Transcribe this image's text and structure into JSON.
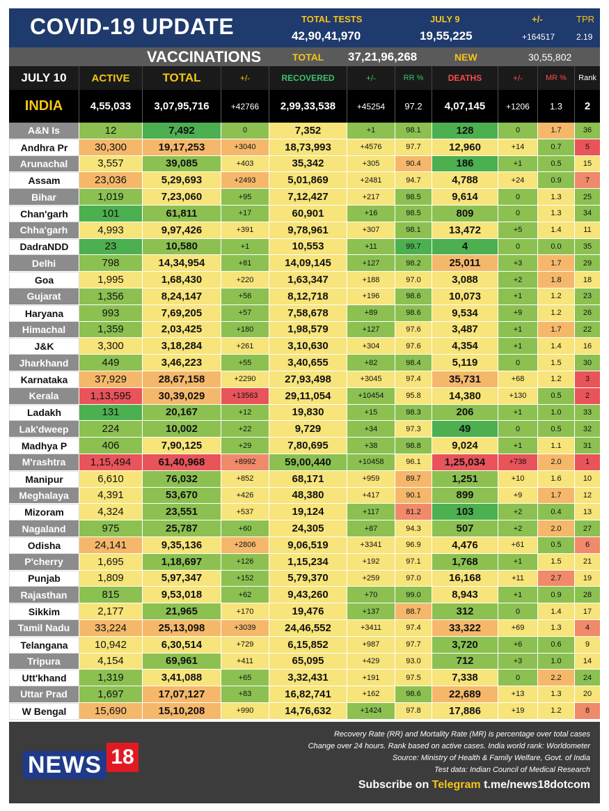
{
  "banner": {
    "title": "COVID-19 UPDATE",
    "total_tests_label": "TOTAL TESTS",
    "total_tests_value": "42,90,41,970",
    "july9_label": "JULY 9",
    "july9_value": "19,55,225",
    "pm_label": "+/-",
    "pm_value": "+164517",
    "tpr_label": "TPR",
    "tpr_value": "2.19"
  },
  "vaccinations": {
    "title": "VACCINATIONS",
    "total_label": "TOTAL",
    "total_value": "37,21,96,268",
    "new_label": "NEW",
    "new_value": "30,55,802"
  },
  "header": {
    "date": "JULY 10",
    "active": "ACTIVE",
    "total": "TOTAL",
    "pm1": "+/-",
    "recovered": "RECOVERED",
    "pm2": "+/-",
    "rr": "RR %",
    "deaths": "DEATHS",
    "pm3": "+/-",
    "mr": "MR %",
    "rank": "Rank"
  },
  "colors": {
    "dark_green": "#4caf50",
    "green": "#8cc152",
    "light_green": "#c2d96a",
    "yellow": "#f7e47a",
    "orange": "#f5b86b",
    "salmon": "#f08a6a",
    "red": "#e8545a"
  },
  "india": [
    "INDIA",
    "4,55,033",
    "3,07,95,716",
    "+42766",
    "2,99,33,538",
    "+45254",
    "97.2",
    "4,07,145",
    "+1206",
    "1.3",
    "2"
  ],
  "rows": [
    {
      "c": [
        "A&N Is",
        "12",
        "7,492",
        "0",
        "7,352",
        "+1",
        "98.1",
        "128",
        "0",
        "1.7",
        "36"
      ],
      "bg": [
        "g",
        "dg",
        "g",
        "y",
        "g",
        "g",
        "dg",
        "g",
        "o",
        "g"
      ]
    },
    {
      "c": [
        "Andhra Pr",
        "30,300",
        "19,17,253",
        "+3040",
        "18,73,993",
        "+4576",
        "97.7",
        "12,960",
        "+14",
        "0.7",
        "5"
      ],
      "bg": [
        "o",
        "o",
        "o",
        "y",
        "y",
        "y",
        "y",
        "y",
        "g",
        "r"
      ]
    },
    {
      "c": [
        "Arunachal",
        "3,557",
        "39,085",
        "+403",
        "35,342",
        "+305",
        "90.4",
        "186",
        "+1",
        "0.5",
        "15"
      ],
      "bg": [
        "y",
        "g",
        "y",
        "y",
        "y",
        "o",
        "dg",
        "g",
        "g",
        "y"
      ]
    },
    {
      "c": [
        "Assam",
        "23,036",
        "5,29,693",
        "+2493",
        "5,01,869",
        "+2481",
        "94.7",
        "4,788",
        "+24",
        "0.9",
        "7"
      ],
      "bg": [
        "o",
        "y",
        "o",
        "y",
        "y",
        "y",
        "y",
        "y",
        "g",
        "s"
      ]
    },
    {
      "c": [
        "Bihar",
        "1,019",
        "7,23,060",
        "+95",
        "7,12,427",
        "+217",
        "98.5",
        "9,614",
        "0",
        "1.3",
        "25"
      ],
      "bg": [
        "g",
        "y",
        "g",
        "y",
        "y",
        "g",
        "y",
        "g",
        "y",
        "g"
      ]
    },
    {
      "c": [
        "Chan'garh",
        "101",
        "61,811",
        "+17",
        "60,901",
        "+16",
        "98.5",
        "809",
        "0",
        "1.3",
        "34"
      ],
      "bg": [
        "dg",
        "g",
        "g",
        "y",
        "g",
        "g",
        "g",
        "g",
        "y",
        "g"
      ]
    },
    {
      "c": [
        "Chha'garh",
        "4,993",
        "9,97,426",
        "+391",
        "9,78,961",
        "+307",
        "98.1",
        "13,472",
        "+5",
        "1.4",
        "11"
      ],
      "bg": [
        "y",
        "y",
        "y",
        "y",
        "y",
        "g",
        "y",
        "g",
        "y",
        "y"
      ]
    },
    {
      "c": [
        "DadraNDD",
        "23",
        "10,580",
        "+1",
        "10,553",
        "+11",
        "99.7",
        "4",
        "0",
        "0.0",
        "35"
      ],
      "bg": [
        "dg",
        "g",
        "g",
        "y",
        "g",
        "dg",
        "dg",
        "g",
        "g",
        "g"
      ]
    },
    {
      "c": [
        "Delhi",
        "798",
        "14,34,954",
        "+81",
        "14,09,145",
        "+127",
        "98.2",
        "25,011",
        "+3",
        "1.7",
        "29"
      ],
      "bg": [
        "g",
        "y",
        "g",
        "y",
        "g",
        "g",
        "o",
        "g",
        "o",
        "g"
      ]
    },
    {
      "c": [
        "Goa",
        "1,995",
        "1,68,430",
        "+220",
        "1,63,347",
        "+188",
        "97.0",
        "3,088",
        "+2",
        "1.8",
        "18"
      ],
      "bg": [
        "y",
        "y",
        "y",
        "y",
        "y",
        "y",
        "y",
        "g",
        "o",
        "y"
      ]
    },
    {
      "c": [
        "Gujarat",
        "1,356",
        "8,24,147",
        "+56",
        "8,12,718",
        "+196",
        "98.6",
        "10,073",
        "+1",
        "1.2",
        "23"
      ],
      "bg": [
        "g",
        "y",
        "g",
        "y",
        "y",
        "g",
        "y",
        "g",
        "y",
        "g"
      ]
    },
    {
      "c": [
        "Haryana",
        "993",
        "7,69,205",
        "+57",
        "7,58,678",
        "+89",
        "98.6",
        "9,534",
        "+9",
        "1.2",
        "26"
      ],
      "bg": [
        "g",
        "y",
        "g",
        "y",
        "g",
        "g",
        "y",
        "g",
        "y",
        "g"
      ]
    },
    {
      "c": [
        "Himachal",
        "1,359",
        "2,03,425",
        "+180",
        "1,98,579",
        "+127",
        "97.6",
        "3,487",
        "+1",
        "1.7",
        "22"
      ],
      "bg": [
        "g",
        "y",
        "g",
        "y",
        "g",
        "y",
        "y",
        "g",
        "o",
        "g"
      ]
    },
    {
      "c": [
        "J&K",
        "3,300",
        "3,18,284",
        "+261",
        "3,10,630",
        "+304",
        "97.6",
        "4,354",
        "+1",
        "1.4",
        "16"
      ],
      "bg": [
        "y",
        "y",
        "y",
        "y",
        "y",
        "y",
        "y",
        "g",
        "y",
        "y"
      ]
    },
    {
      "c": [
        "Jharkhand",
        "449",
        "3,46,223",
        "+55",
        "3,40,655",
        "+82",
        "98.4",
        "5,119",
        "0",
        "1.5",
        "30"
      ],
      "bg": [
        "g",
        "y",
        "g",
        "y",
        "g",
        "g",
        "y",
        "g",
        "y",
        "g"
      ]
    },
    {
      "c": [
        "Karnataka",
        "37,929",
        "28,67,158",
        "+2290",
        "27,93,498",
        "+3045",
        "97.4",
        "35,731",
        "+68",
        "1.2",
        "3"
      ],
      "bg": [
        "o",
        "o",
        "y",
        "y",
        "y",
        "y",
        "o",
        "y",
        "y",
        "r"
      ]
    },
    {
      "c": [
        "Kerala",
        "1,13,595",
        "30,39,029",
        "+13563",
        "29,11,054",
        "+10454",
        "95.8",
        "14,380",
        "+130",
        "0.5",
        "2"
      ],
      "bg": [
        "r",
        "o",
        "r",
        "y",
        "g",
        "y",
        "y",
        "y",
        "g",
        "r"
      ]
    },
    {
      "c": [
        "Ladakh",
        "131",
        "20,167",
        "+12",
        "19,830",
        "+15",
        "98.3",
        "206",
        "+1",
        "1.0",
        "33"
      ],
      "bg": [
        "dg",
        "g",
        "g",
        "y",
        "g",
        "g",
        "g",
        "g",
        "g",
        "g"
      ]
    },
    {
      "c": [
        "Lak'dweep",
        "224",
        "10,002",
        "+22",
        "9,729",
        "+34",
        "97.3",
        "49",
        "0",
        "0.5",
        "32"
      ],
      "bg": [
        "g",
        "g",
        "g",
        "y",
        "g",
        "y",
        "dg",
        "g",
        "g",
        "g"
      ]
    },
    {
      "c": [
        "Madhya P",
        "406",
        "7,90,125",
        "+29",
        "7,80,695",
        "+38",
        "98.8",
        "9,024",
        "+1",
        "1.1",
        "31"
      ],
      "bg": [
        "g",
        "y",
        "g",
        "y",
        "g",
        "g",
        "y",
        "g",
        "y",
        "g"
      ]
    },
    {
      "c": [
        "M'rashtra",
        "1,15,494",
        "61,40,968",
        "+8992",
        "59,00,440",
        "+10458",
        "96.1",
        "1,25,034",
        "+738",
        "2.0",
        "1"
      ],
      "bg": [
        "r",
        "r",
        "s",
        "g",
        "g",
        "y",
        "r",
        "r",
        "o",
        "r"
      ]
    },
    {
      "c": [
        "Manipur",
        "6,610",
        "76,032",
        "+852",
        "68,171",
        "+959",
        "89.7",
        "1,251",
        "+10",
        "1.6",
        "10"
      ],
      "bg": [
        "y",
        "g",
        "y",
        "y",
        "y",
        "o",
        "g",
        "y",
        "y",
        "y"
      ]
    },
    {
      "c": [
        "Meghalaya",
        "4,391",
        "53,670",
        "+426",
        "48,380",
        "+417",
        "90.1",
        "899",
        "+9",
        "1.7",
        "12"
      ],
      "bg": [
        "y",
        "g",
        "y",
        "y",
        "y",
        "o",
        "g",
        "y",
        "o",
        "y"
      ]
    },
    {
      "c": [
        "Mizoram",
        "4,324",
        "23,551",
        "+537",
        "19,124",
        "+117",
        "81.2",
        "103",
        "+2",
        "0.4",
        "13"
      ],
      "bg": [
        "y",
        "g",
        "y",
        "y",
        "g",
        "s",
        "dg",
        "g",
        "g",
        "y"
      ]
    },
    {
      "c": [
        "Nagaland",
        "975",
        "25,787",
        "+60",
        "24,305",
        "+87",
        "94.3",
        "507",
        "+2",
        "2.0",
        "27"
      ],
      "bg": [
        "g",
        "g",
        "g",
        "y",
        "g",
        "y",
        "g",
        "g",
        "o",
        "g"
      ]
    },
    {
      "c": [
        "Odisha",
        "24,141",
        "9,35,136",
        "+2806",
        "9,06,519",
        "+3341",
        "96.9",
        "4,476",
        "+61",
        "0.5",
        "6"
      ],
      "bg": [
        "o",
        "y",
        "o",
        "y",
        "y",
        "y",
        "y",
        "y",
        "g",
        "s"
      ]
    },
    {
      "c": [
        "P'cherry",
        "1,695",
        "1,18,697",
        "+126",
        "1,15,234",
        "+192",
        "97.1",
        "1,768",
        "+1",
        "1.5",
        "21"
      ],
      "bg": [
        "y",
        "g",
        "g",
        "y",
        "y",
        "y",
        "g",
        "g",
        "y",
        "y"
      ]
    },
    {
      "c": [
        "Punjab",
        "1,809",
        "5,97,347",
        "+152",
        "5,79,370",
        "+259",
        "97.0",
        "16,168",
        "+11",
        "2.7",
        "19"
      ],
      "bg": [
        "y",
        "y",
        "g",
        "y",
        "y",
        "y",
        "y",
        "y",
        "s",
        "y"
      ]
    },
    {
      "c": [
        "Rajasthan",
        "815",
        "9,53,018",
        "+62",
        "9,43,260",
        "+70",
        "99.0",
        "8,943",
        "+1",
        "0.9",
        "28"
      ],
      "bg": [
        "g",
        "y",
        "g",
        "y",
        "g",
        "g",
        "y",
        "g",
        "g",
        "g"
      ]
    },
    {
      "c": [
        "Sikkim",
        "2,177",
        "21,965",
        "+170",
        "19,476",
        "+137",
        "88.7",
        "312",
        "0",
        "1.4",
        "17"
      ],
      "bg": [
        "y",
        "g",
        "y",
        "y",
        "g",
        "o",
        "g",
        "g",
        "y",
        "y"
      ]
    },
    {
      "c": [
        "Tamil Nadu",
        "33,224",
        "25,13,098",
        "+3039",
        "24,46,552",
        "+3411",
        "97.4",
        "33,322",
        "+69",
        "1.3",
        "4"
      ],
      "bg": [
        "o",
        "o",
        "o",
        "y",
        "y",
        "y",
        "o",
        "y",
        "y",
        "s"
      ]
    },
    {
      "c": [
        "Telangana",
        "10,942",
        "6,30,514",
        "+729",
        "6,15,852",
        "+987",
        "97.7",
        "3,720",
        "+6",
        "0.6",
        "9"
      ],
      "bg": [
        "y",
        "y",
        "y",
        "y",
        "y",
        "y",
        "g",
        "g",
        "g",
        "y"
      ]
    },
    {
      "c": [
        "Tripura",
        "4,154",
        "69,961",
        "+411",
        "65,095",
        "+429",
        "93.0",
        "712",
        "+3",
        "1.0",
        "14"
      ],
      "bg": [
        "y",
        "g",
        "y",
        "y",
        "y",
        "y",
        "g",
        "g",
        "g",
        "y"
      ]
    },
    {
      "c": [
        "Utt'khand",
        "1,319",
        "3,41,088",
        "+65",
        "3,32,431",
        "+191",
        "97.5",
        "7,338",
        "0",
        "2.2",
        "24"
      ],
      "bg": [
        "g",
        "y",
        "g",
        "y",
        "y",
        "y",
        "y",
        "g",
        "o",
        "g"
      ]
    },
    {
      "c": [
        "Uttar Prad",
        "1,697",
        "17,07,127",
        "+83",
        "16,82,741",
        "+162",
        "98.6",
        "22,689",
        "+13",
        "1.3",
        "20"
      ],
      "bg": [
        "g",
        "o",
        "g",
        "y",
        "y",
        "g",
        "o",
        "y",
        "y",
        "y"
      ]
    },
    {
      "c": [
        "W Bengal",
        "15,690",
        "15,10,208",
        "+990",
        "14,76,632",
        "+1424",
        "97.8",
        "17,886",
        "+19",
        "1.2",
        "8"
      ],
      "bg": [
        "o",
        "o",
        "y",
        "y",
        "g",
        "y",
        "y",
        "y",
        "y",
        "s"
      ]
    }
  ],
  "footer": {
    "note1": "Recovery Rate (RR) and Mortality Rate (MR) is percentage over total cases",
    "note2": "Change over 24 hours. Rank based on active cases. India world rank: Worldometer",
    "note3": "Source: Ministry of Health & Family Welfare, Govt. of India",
    "note4": "Test data: Indian Council of Medical Research",
    "subscribe_prefix": "Subscribe on ",
    "subscribe_telegram": "Telegram",
    "subscribe_link": " t.me/news18dotcom",
    "logo_word": "NEWS",
    "logo_num": "18"
  }
}
